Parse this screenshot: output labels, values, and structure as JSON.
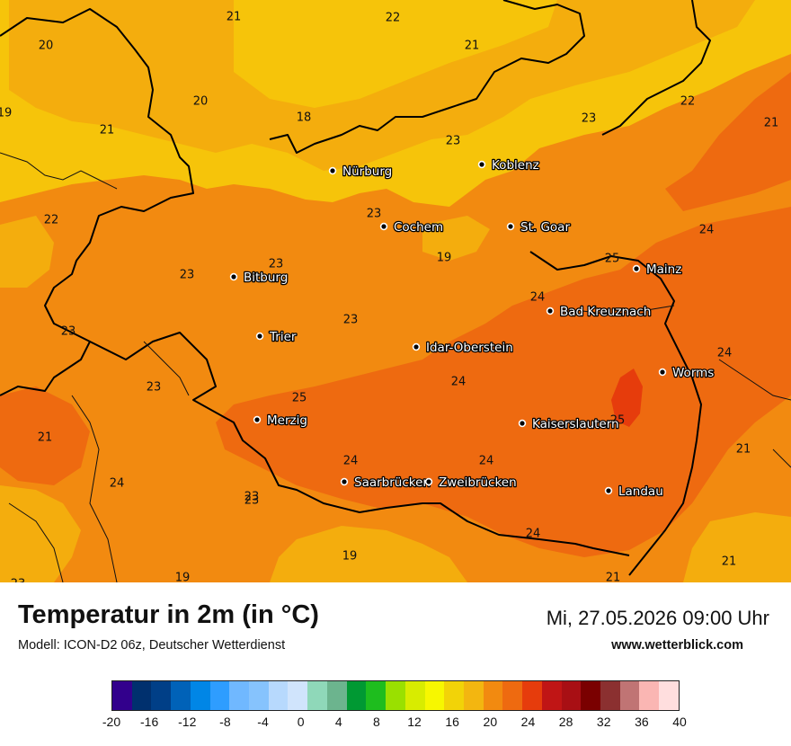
{
  "map": {
    "palette": {
      "t18": "#f6c40a",
      "t20": "#f4ad0d",
      "t22": "#f28a10",
      "t24": "#ee6a10",
      "t26": "#e63c0c"
    },
    "cities": [
      {
        "name": "Nürburg"
      },
      {
        "name": "Koblenz"
      },
      {
        "name": "Cochem"
      },
      {
        "name": "St. Goar"
      },
      {
        "name": "Mainz"
      },
      {
        "name": "Bitburg"
      },
      {
        "name": "Bad Kreuznach"
      },
      {
        "name": "Trier"
      },
      {
        "name": "Idar-Oberstein"
      },
      {
        "name": "Worms"
      },
      {
        "name": "Merzig"
      },
      {
        "name": "Kaiserslautern"
      },
      {
        "name": "Saarbrücken"
      },
      {
        "name": "Zweibrücken"
      },
      {
        "name": "Landau"
      }
    ],
    "values": [
      "21",
      "22",
      "20",
      "21",
      "20",
      "18",
      "21",
      "19",
      "23",
      "22",
      "23",
      "21",
      "22",
      "23",
      "24",
      "23",
      "19",
      "25",
      "23",
      "23",
      "24",
      "23",
      "23",
      "24",
      "25",
      "25",
      "24",
      "24",
      "21",
      "23",
      "24",
      "24",
      "23",
      "21",
      "19",
      "24",
      "23",
      "19",
      "21",
      "21"
    ]
  },
  "footer": {
    "title": "Temperatur in 2m (in °C)",
    "model": "Modell: ICON-D2 06z, Deutscher Wetterdienst",
    "datetime": "Mi, 27.05.2026 09:00 Uhr",
    "website": "www.wetterblick.com"
  },
  "legend": {
    "colors": [
      "#32008c",
      "#00306e",
      "#003f87",
      "#0062b8",
      "#0086e6",
      "#2e9dff",
      "#70b8ff",
      "#86c3fd",
      "#b7d9fd",
      "#d0e4fc",
      "#8fd8b9",
      "#6cb48e",
      "#009933",
      "#1ebd1e",
      "#9ae000",
      "#d8ec00",
      "#f7f700",
      "#f2d308",
      "#f3b610",
      "#f28a10",
      "#ee6a10",
      "#e63c0c",
      "#c01515",
      "#a80f14",
      "#7a0000",
      "#8b3030",
      "#c07474",
      "#fab6b3",
      "#ffdede"
    ],
    "ticks": [
      "-20",
      "-16",
      "-12",
      "-8",
      "-4",
      "0",
      "4",
      "8",
      "12",
      "16",
      "20",
      "24",
      "28",
      "32",
      "36",
      "40"
    ]
  }
}
